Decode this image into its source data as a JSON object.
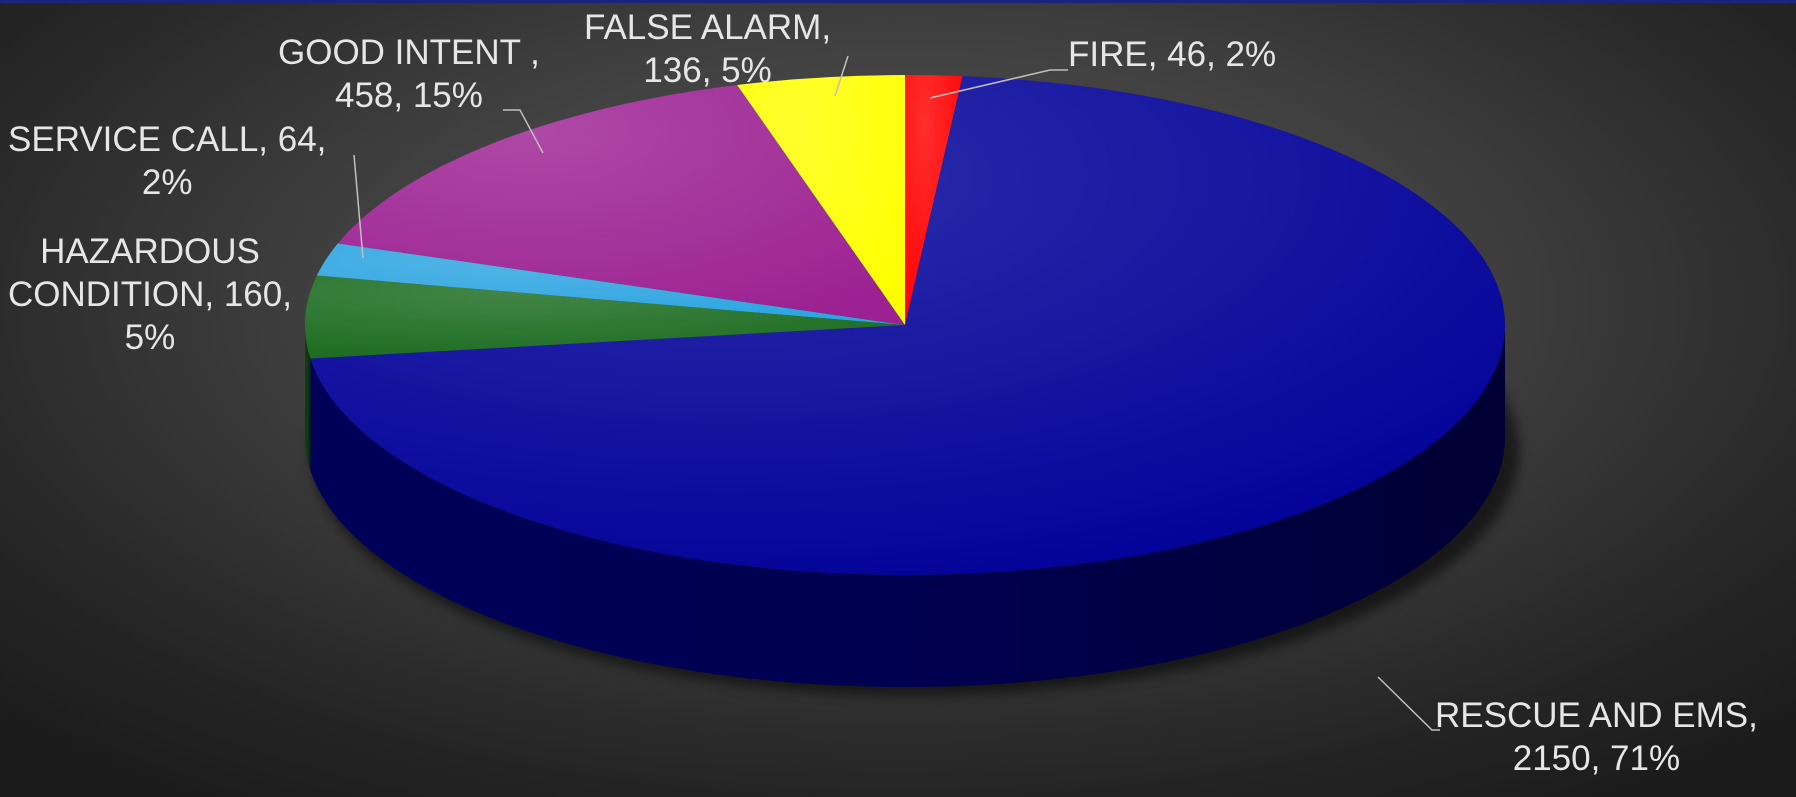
{
  "chart_data": {
    "type": "pie",
    "three_d": true,
    "title": "",
    "legend": "none",
    "slices": [
      {
        "label_lines": [
          "FIRE, 46, 2%"
        ],
        "name": "FIRE",
        "value": 46,
        "percent": "2%",
        "color": "#ff0000",
        "side_color": "#b30000"
      },
      {
        "label_lines": [
          "RESCUE AND EMS,",
          "2150, 71%"
        ],
        "name": "RESCUE AND EMS",
        "value": 2150,
        "percent": "71%",
        "color": "#000098",
        "side_color": "#00005e"
      },
      {
        "label_lines": [
          "HAZARDOUS",
          "CONDITION, 160,",
          "5%"
        ],
        "name": "HAZARDOUS CONDITION",
        "value": 160,
        "percent": "5%",
        "color": "#1a6b1f",
        "side_color": "#0f4312"
      },
      {
        "label_lines": [
          "SERVICE CALL, 64,",
          "2%"
        ],
        "name": "SERVICE CALL",
        "value": 64,
        "percent": "2%",
        "color": "#2ba4e0",
        "side_color": "#1a6f99"
      },
      {
        "label_lines": [
          "GOOD INTENT ,",
          "458, 15%"
        ],
        "name": "GOOD INTENT",
        "value": 458,
        "percent": "15%",
        "color": "#9c2192",
        "side_color": "#65145e"
      },
      {
        "label_lines": [
          "FALSE ALARM,",
          "136, 5%"
        ],
        "name": "FALSE ALARM",
        "value": 136,
        "percent": "5%",
        "color": "#ffff00",
        "side_color": "#b3b300"
      }
    ]
  }
}
